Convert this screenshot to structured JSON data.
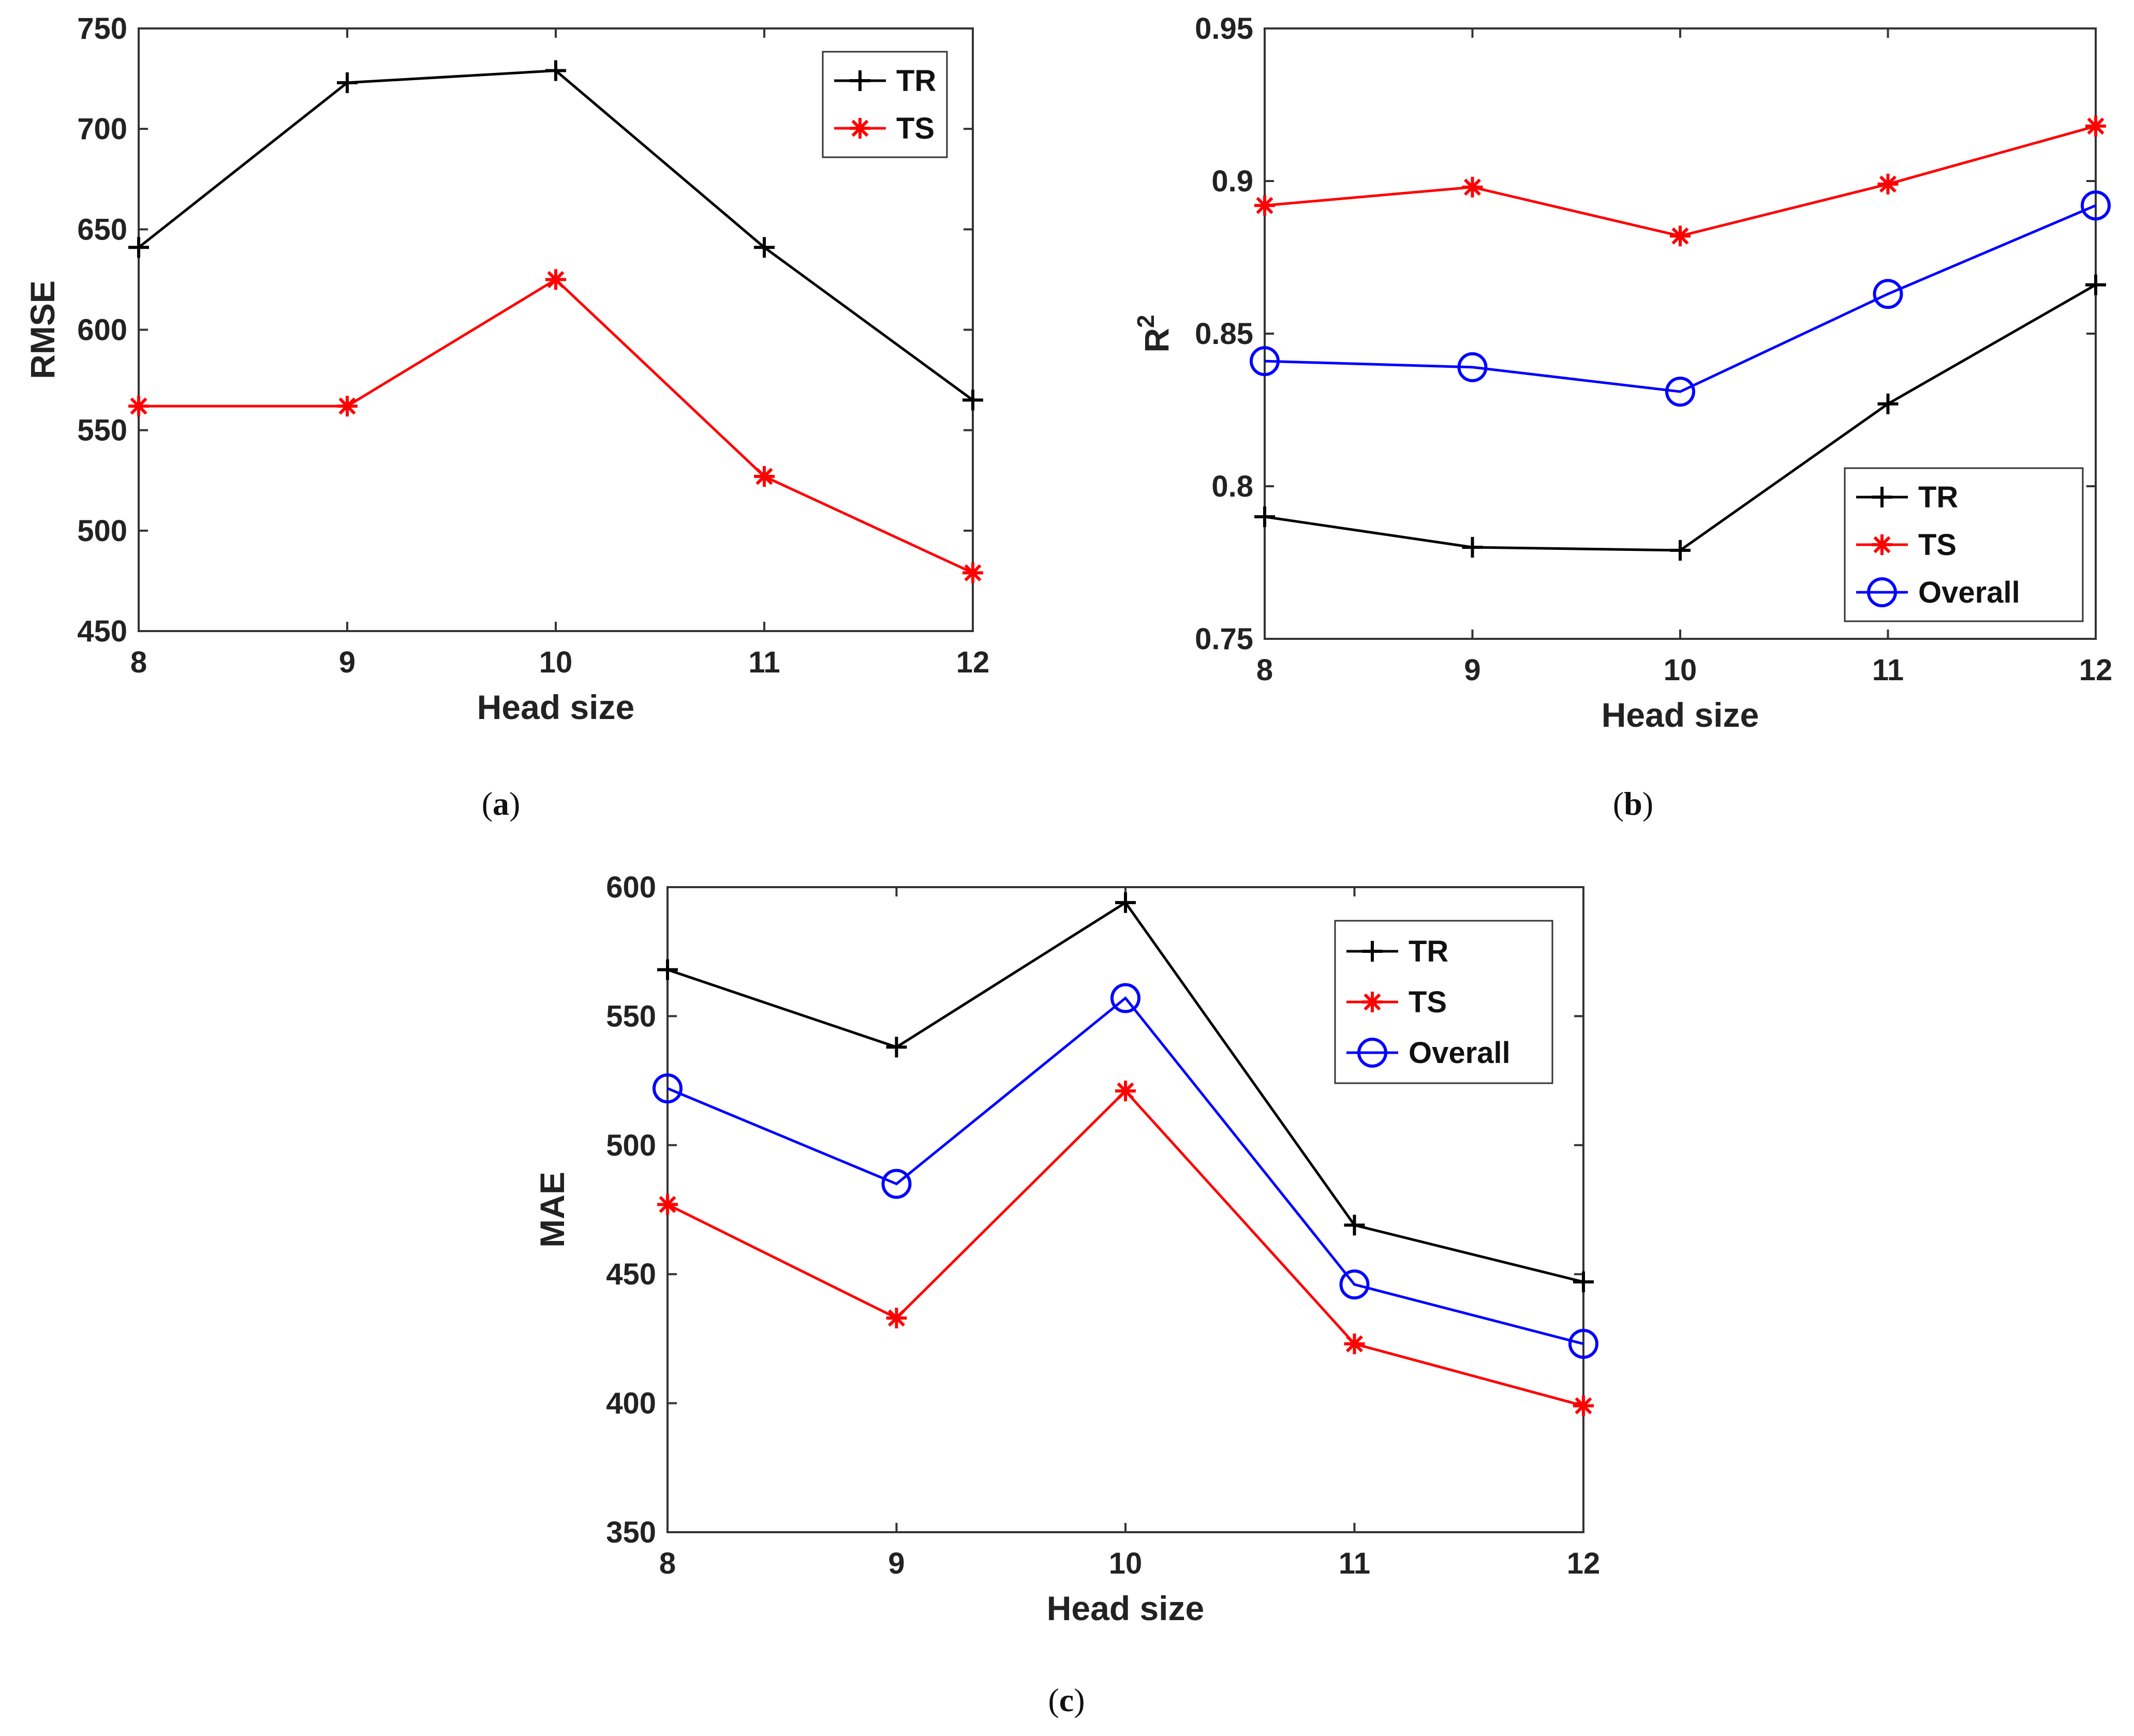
{
  "chart_data": [
    {
      "type": "line",
      "panel": "a",
      "xlabel": "Head size",
      "ylabel": "RMSE",
      "x": [
        8,
        9,
        10,
        11,
        12
      ],
      "xticks": [
        "8",
        "9",
        "10",
        "11",
        "12"
      ],
      "ylim": [
        450,
        750
      ],
      "yticks": [
        "450",
        "500",
        "550",
        "600",
        "650",
        "700",
        "750"
      ],
      "legend_position": "top-right",
      "series": [
        {
          "name": "TR",
          "color": "#000000",
          "marker": "plus",
          "values": [
            641,
            723,
            729,
            641,
            565
          ]
        },
        {
          "name": "TS",
          "color": "#ff0000",
          "marker": "asterisk",
          "values": [
            562,
            562,
            625,
            527,
            479
          ]
        }
      ]
    },
    {
      "type": "line",
      "panel": "b",
      "xlabel": "Head size",
      "ylabel": "R",
      "ylabel_sup": "2",
      "x": [
        8,
        9,
        10,
        11,
        12
      ],
      "xticks": [
        "8",
        "9",
        "10",
        "11",
        "12"
      ],
      "ylim": [
        0.75,
        0.95
      ],
      "yticks": [
        "0.75",
        "0.8",
        "0.85",
        "0.9",
        "0.95"
      ],
      "legend_position": "bottom-right",
      "series": [
        {
          "name": "TR",
          "color": "#000000",
          "marker": "plus",
          "values": [
            0.79,
            0.78,
            0.779,
            0.827,
            0.866
          ]
        },
        {
          "name": "TS",
          "color": "#ff0000",
          "marker": "asterisk",
          "values": [
            0.892,
            0.898,
            0.882,
            0.899,
            0.918
          ]
        },
        {
          "name": "Overall",
          "color": "#0000ff",
          "marker": "circle",
          "values": [
            0.841,
            0.839,
            0.831,
            0.863,
            0.892
          ]
        }
      ]
    },
    {
      "type": "line",
      "panel": "c",
      "xlabel": "Head size",
      "ylabel": "MAE",
      "x": [
        8,
        9,
        10,
        11,
        12
      ],
      "xticks": [
        "8",
        "9",
        "10",
        "11",
        "12"
      ],
      "ylim": [
        350,
        600
      ],
      "yticks": [
        "350",
        "400",
        "450",
        "500",
        "550",
        "600"
      ],
      "legend_position": "top-right",
      "series": [
        {
          "name": "TR",
          "color": "#000000",
          "marker": "plus",
          "values": [
            568,
            538,
            594,
            469,
            447
          ]
        },
        {
          "name": "TS",
          "color": "#ff0000",
          "marker": "asterisk",
          "values": [
            477,
            433,
            521,
            423,
            399
          ]
        },
        {
          "name": "Overall",
          "color": "#0000ff",
          "marker": "circle",
          "values": [
            522,
            485,
            557,
            446,
            423
          ]
        }
      ]
    }
  ],
  "captions": {
    "a": {
      "open": "(",
      "letter": "a",
      "close": ")"
    },
    "b": {
      "open": "(",
      "letter": "b",
      "close": ")"
    },
    "c": {
      "open": "(",
      "letter": "c",
      "close": ")"
    }
  }
}
